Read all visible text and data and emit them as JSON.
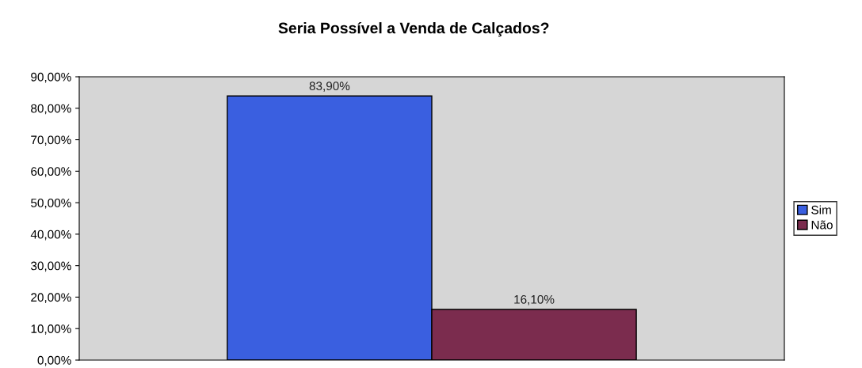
{
  "chart_data": {
    "type": "bar",
    "title": "Seria Possível a Venda de Calçados?",
    "categories": [
      null
    ],
    "series": [
      {
        "name": "Sim",
        "color": "#3a5fe0",
        "values": [
          83.9
        ],
        "value_labels": [
          "83,90%"
        ]
      },
      {
        "name": "Não",
        "color": "#7b2c4e",
        "values": [
          16.1
        ],
        "value_labels": [
          "16,10%"
        ]
      }
    ],
    "ylim": [
      0,
      90
    ],
    "yticks": [
      {
        "value": 0,
        "label": "0,00%"
      },
      {
        "value": 10,
        "label": "10,00%"
      },
      {
        "value": 20,
        "label": "20,00%"
      },
      {
        "value": 30,
        "label": "30,00%"
      },
      {
        "value": 40,
        "label": "40,00%"
      },
      {
        "value": 50,
        "label": "50,00%"
      },
      {
        "value": 60,
        "label": "60,00%"
      },
      {
        "value": 70,
        "label": "70,00%"
      },
      {
        "value": 80,
        "label": "80,00%"
      },
      {
        "value": 90,
        "label": "90,00%"
      }
    ],
    "legend": "right",
    "grid": false
  }
}
